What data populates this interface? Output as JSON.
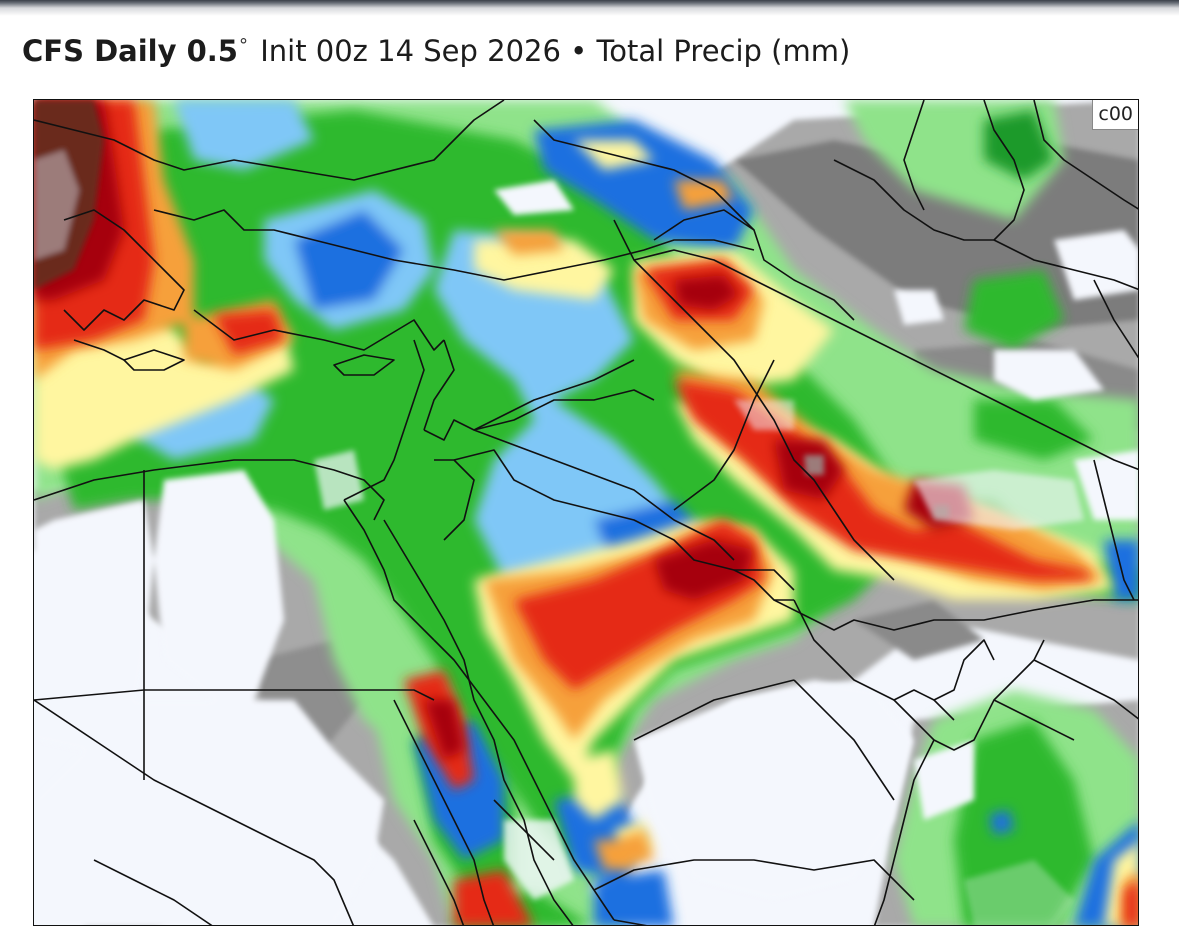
{
  "header": {
    "model": "CFS Daily 0.5",
    "degree_symbol": "°",
    "init": "Init 00z 14 Sep 2026",
    "separator": "•",
    "field": "Total Precip (mm)"
  },
  "map": {
    "member_label": "c00",
    "region": "Eastern Mediterranean, Middle East and Arabian Peninsula",
    "colors": {
      "trace": "#a9a9a9",
      "trace_dark": "#7b7b7b",
      "light_green": "#8fe38a",
      "green": "#2fb92f",
      "dark_green": "#1b9a2a",
      "light_blue": "#7fc7f7",
      "blue": "#1f6fe0",
      "light_yellow": "#fff6a0",
      "orange": "#f6a03a",
      "red": "#e52a12",
      "dark_red": "#a6060a",
      "brown": "#6b2a1e",
      "mauve": "#9c7c7a",
      "background": "#f4f7fd",
      "border_lines": "#111111"
    }
  }
}
